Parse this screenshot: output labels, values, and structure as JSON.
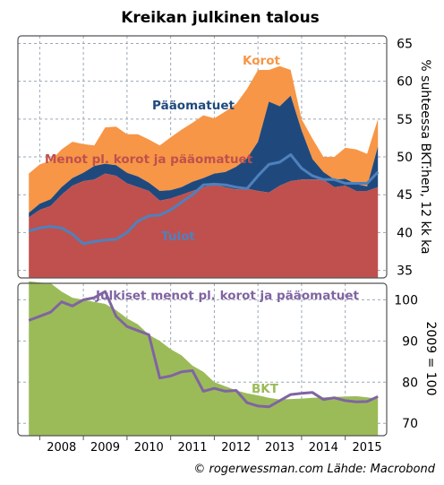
{
  "title": "Kreikan julkinen talous",
  "source": "© rogerwessman.com Lähde: Macrobond",
  "colors": {
    "menot": "#c0504d",
    "paaomatuet": "#1f497d",
    "korot": "#f79646",
    "tulot": "#4f81bd",
    "bkt": "#9bbb59",
    "julkiset": "#8064a2"
  },
  "chart_data": [
    {
      "type": "area",
      "ylabel": "% suhteessa BKT:hen, 12 kk ka",
      "ylim": [
        34,
        66
      ],
      "yticks": [
        35,
        40,
        45,
        50,
        55,
        60,
        65
      ],
      "grid": true,
      "x": [
        2007.75,
        2008.0,
        2008.25,
        2008.5,
        2008.75,
        2009.0,
        2009.25,
        2009.5,
        2009.75,
        2010.0,
        2010.25,
        2010.5,
        2010.75,
        2011.0,
        2011.25,
        2011.5,
        2011.75,
        2012.0,
        2012.25,
        2012.5,
        2012.75,
        2013.0,
        2013.25,
        2013.5,
        2013.75,
        2014.0,
        2014.25,
        2014.5,
        2014.75,
        2015.0,
        2015.25,
        2015.5,
        2015.75
      ],
      "series": [
        {
          "name": "Menot pl. korot ja pääomatuet",
          "values": [
            42.0,
            43.0,
            43.5,
            45.0,
            46.2,
            46.8,
            47.0,
            47.8,
            47.5,
            46.5,
            46.0,
            45.5,
            44.2,
            44.5,
            45.0,
            45.5,
            46.0,
            46.3,
            46.0,
            45.7,
            45.8,
            45.5,
            45.3,
            46.2,
            46.8,
            47.0,
            47.0,
            47.0,
            46.0,
            46.2,
            45.5,
            45.5,
            46.0
          ]
        },
        {
          "name": "Pääomatuet",
          "values": [
            0.6,
            0.8,
            0.9,
            1.0,
            1.0,
            1.1,
            1.8,
            1.3,
            1.4,
            1.4,
            1.4,
            1.1,
            1.3,
            1.1,
            1.0,
            1.2,
            1.2,
            1.5,
            2.0,
            3.0,
            4.0,
            6.5,
            12.0,
            10.5,
            11.3,
            6.5,
            2.7,
            1.0,
            1.0,
            0.9,
            0.9,
            0.6,
            5.4
          ]
        },
        {
          "name": "Korot",
          "values": [
            5.2,
            5.2,
            5.1,
            5.0,
            4.8,
            3.8,
            2.7,
            4.8,
            5.1,
            5.1,
            5.6,
            5.7,
            6.0,
            7.0,
            7.6,
            7.8,
            8.3,
            7.3,
            8.0,
            8.3,
            9.2,
            9.5,
            4.2,
            5.3,
            3.4,
            1.5,
            2.7,
            2.0,
            3.0,
            4.1,
            4.6,
            4.3,
            3.6
          ]
        },
        {
          "name": "Tulot",
          "values": [
            40.2,
            40.6,
            40.8,
            40.6,
            39.8,
            38.5,
            38.8,
            39.0,
            39.1,
            40.0,
            41.5,
            42.2,
            42.3,
            43.0,
            44.0,
            45.0,
            46.3,
            46.4,
            46.3,
            46.0,
            45.8,
            47.5,
            49.0,
            49.3,
            50.3,
            48.5,
            47.5,
            47.0,
            47.0,
            46.5,
            46.5,
            46.5,
            48.0
          ]
        }
      ],
      "labels": {
        "korot": "Korot",
        "paaomatuet": "Pääomatuet",
        "menot": "Menot pl. korot ja pääomatuet",
        "tulot": "Tulot"
      }
    },
    {
      "type": "area",
      "ylabel": "2009 = 100",
      "ylim": [
        67,
        104
      ],
      "yticks": [
        70,
        80,
        90,
        100
      ],
      "grid": true,
      "x": [
        2007.75,
        2008.0,
        2008.25,
        2008.5,
        2008.75,
        2009.0,
        2009.25,
        2009.5,
        2009.75,
        2010.0,
        2010.25,
        2010.5,
        2010.75,
        2011.0,
        2011.25,
        2011.5,
        2011.75,
        2012.0,
        2012.25,
        2012.5,
        2012.75,
        2013.0,
        2013.25,
        2013.5,
        2013.75,
        2014.0,
        2014.25,
        2014.5,
        2014.75,
        2015.0,
        2015.25,
        2015.5,
        2015.75
      ],
      "series": [
        {
          "name": "BKT",
          "values": [
            104.5,
            104.2,
            104.0,
            102.0,
            100.5,
            100.0,
            99.5,
            99.0,
            97.5,
            95.5,
            94.0,
            91.5,
            90.0,
            88.0,
            86.5,
            84.0,
            82.5,
            80.0,
            79.0,
            78.0,
            77.3,
            76.8,
            76.2,
            75.8,
            75.9,
            76.0,
            76.2,
            76.3,
            76.4,
            76.5,
            76.6,
            76.3,
            76.0
          ]
        },
        {
          "name": "Julkiset menot pl. korot ja pääomatuet",
          "values": [
            95.0,
            96.0,
            97.0,
            99.5,
            98.5,
            100.0,
            100.5,
            102.0,
            96.0,
            93.5,
            92.5,
            91.5,
            81.0,
            81.5,
            82.5,
            82.8,
            77.8,
            78.5,
            77.8,
            78.0,
            75.0,
            74.2,
            74.0,
            75.5,
            77.0,
            77.3,
            77.5,
            75.8,
            76.2,
            75.5,
            75.2,
            75.3,
            76.5
          ]
        }
      ],
      "labels": {
        "bkt": "BKT",
        "julkiset": "Julkiset menot pl. korot ja pääomatuet"
      }
    }
  ],
  "xaxis": {
    "xlim": [
      2007.5,
      2015.95
    ],
    "ticklabels": [
      {
        "label": "2008",
        "x": 2008.0
      },
      {
        "label": "2009",
        "x": 2009.0
      },
      {
        "label": "2010",
        "x": 2010.0
      },
      {
        "label": "2011",
        "x": 2011.0
      },
      {
        "label": "2012",
        "x": 2012.0
      },
      {
        "label": "2013",
        "x": 2013.0
      },
      {
        "label": "2014",
        "x": 2014.0
      },
      {
        "label": "2015",
        "x": 2015.0
      }
    ]
  }
}
